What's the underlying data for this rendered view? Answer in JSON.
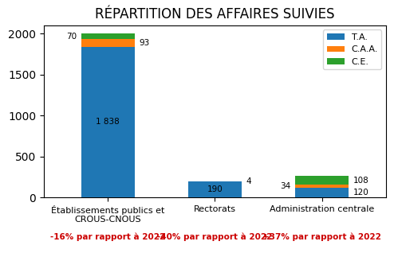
{
  "chart_data": {
    "type": "bar",
    "title": "RÉPARTITION DES AFFAIRES SUIVIES",
    "categories": [
      "Établissements publics et\nCROUS-CNOUS",
      "Rectorats",
      "Administration centrale"
    ],
    "stacked": true,
    "data_labels": true,
    "legend": "upper right",
    "ylim": [
      0,
      2100
    ],
    "yticks": [
      0,
      500,
      1000,
      1500,
      2000
    ],
    "series": [
      {
        "name": "T.A.",
        "values": [
          1838,
          190,
          120
        ],
        "value_labels": [
          "1 838",
          "190",
          "120"
        ]
      },
      {
        "name": "C.A.A.",
        "values": [
          93,
          4,
          34
        ]
      },
      {
        "name": "C.E.",
        "values": [
          70,
          0,
          108
        ],
        "value_labels": [
          "70",
          null,
          "108"
        ]
      }
    ],
    "annotations": [
      {
        "text": "-16% par rapport à 2022",
        "color": "#cc0000"
      },
      {
        "text": "-40% par rapport à 2022",
        "color": "#cc0000"
      },
      {
        "text": "+37% par rapport à 2022",
        "color": "#cc0000"
      }
    ]
  }
}
